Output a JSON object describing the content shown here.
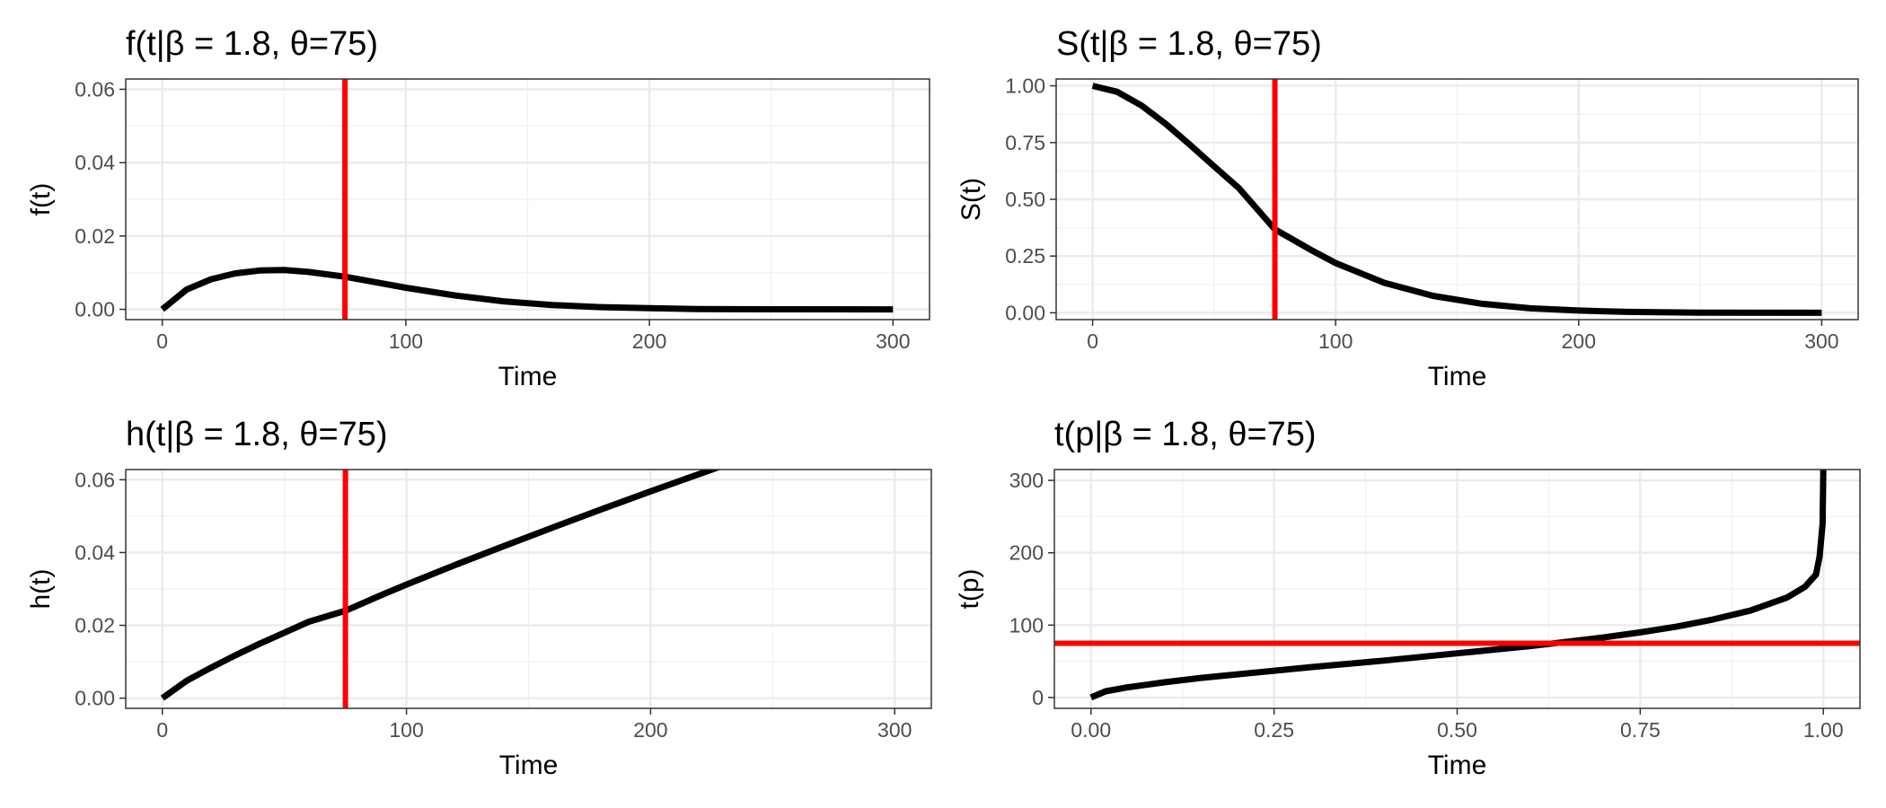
{
  "chart_data": [
    {
      "type": "line",
      "title": "f(t|β = 1.8, θ=75)",
      "xlabel": "Time",
      "ylabel": "f(t)",
      "xlim": [
        -15,
        315
      ],
      "ylim": [
        -0.0028,
        0.0628
      ],
      "x_ticks": [
        0,
        100,
        200,
        300
      ],
      "x_tick_labels": [
        "0",
        "100",
        "200",
        "300"
      ],
      "y_ticks": [
        0,
        0.02,
        0.04,
        0.06
      ],
      "y_tick_labels": [
        "0.00",
        "0.02",
        "0.04",
        "0.06"
      ],
      "grid": true,
      "series": [
        {
          "color": "#000000",
          "x": [
            0,
            10,
            20,
            30,
            40,
            50,
            60,
            75,
            90,
            100,
            120,
            140,
            160,
            180,
            200,
            220,
            250,
            300
          ],
          "y": [
            0,
            0.0054,
            0.0082,
            0.0098,
            0.0106,
            0.0107,
            0.0102,
            0.0089,
            0.0071,
            0.0059,
            0.0038,
            0.0022,
            0.0012,
            0.0006,
            0.0003,
            0.0001,
            2e-05,
            0
          ]
        }
      ],
      "reference_line": {
        "orientation": "vertical",
        "value": 75,
        "color": "#ff0000"
      }
    },
    {
      "type": "line",
      "title": "S(t|β = 1.8, θ=75)",
      "xlabel": "Time",
      "ylabel": "S(t)",
      "xlim": [
        -15,
        315
      ],
      "ylim": [
        -0.03,
        1.03
      ],
      "x_ticks": [
        0,
        100,
        200,
        300
      ],
      "x_tick_labels": [
        "0",
        "100",
        "200",
        "300"
      ],
      "y_ticks": [
        0,
        0.25,
        0.5,
        0.75,
        1
      ],
      "y_tick_labels": [
        "0.00",
        "0.25",
        "0.50",
        "0.75",
        "1.00"
      ],
      "grid": true,
      "series": [
        {
          "color": "#000000",
          "x": [
            0,
            10,
            20,
            30,
            40,
            50,
            60,
            75,
            90,
            100,
            120,
            140,
            160,
            180,
            200,
            220,
            250,
            300
          ],
          "y": [
            1,
            0.974,
            0.914,
            0.833,
            0.741,
            0.645,
            0.551,
            0.368,
            0.276,
            0.219,
            0.132,
            0.075,
            0.04,
            0.02,
            0.01,
            0.004,
            0.001,
            0
          ]
        }
      ],
      "reference_line": {
        "orientation": "vertical",
        "value": 75,
        "color": "#ff0000"
      }
    },
    {
      "type": "line",
      "title": "h(t|β = 1.8, θ=75)",
      "xlabel": "Time",
      "ylabel": "h(t)",
      "xlim": [
        -15,
        315
      ],
      "ylim": [
        -0.0028,
        0.0628
      ],
      "x_ticks": [
        0,
        100,
        200,
        300
      ],
      "x_tick_labels": [
        "0",
        "100",
        "200",
        "300"
      ],
      "y_ticks": [
        0,
        0.02,
        0.04,
        0.06
      ],
      "y_tick_labels": [
        "0.00",
        "0.02",
        "0.04",
        "0.06"
      ],
      "grid": true,
      "series": [
        {
          "color": "#000000",
          "x": [
            0,
            10,
            20,
            30,
            40,
            50,
            60,
            75,
            90,
            100,
            120,
            140,
            160,
            180,
            200,
            220,
            236
          ],
          "y": [
            0,
            0.0048,
            0.0084,
            0.0118,
            0.015,
            0.018,
            0.021,
            0.024,
            0.0284,
            0.0312,
            0.0366,
            0.0418,
            0.0469,
            0.0519,
            0.0568,
            0.0616,
            0.0654
          ]
        }
      ],
      "reference_line": {
        "orientation": "vertical",
        "value": 75,
        "color": "#ff0000"
      }
    },
    {
      "type": "line",
      "title": "t(p|β = 1.8, θ=75)",
      "xlabel": "Time",
      "ylabel": "t(p)",
      "xlim": [
        -0.05,
        1.05
      ],
      "ylim": [
        -15,
        315
      ],
      "x_ticks": [
        0,
        0.25,
        0.5,
        0.75,
        1
      ],
      "x_tick_labels": [
        "0.00",
        "0.25",
        "0.50",
        "0.75",
        "1.00"
      ],
      "y_ticks": [
        0,
        100,
        200,
        300
      ],
      "y_tick_labels": [
        "0",
        "100",
        "200",
        "300"
      ],
      "grid": true,
      "series": [
        {
          "color": "#000000",
          "x": [
            0,
            0.02,
            0.05,
            0.1,
            0.15,
            0.2,
            0.3,
            0.4,
            0.5,
            0.6,
            0.7,
            0.75,
            0.8,
            0.85,
            0.9,
            0.95,
            0.975,
            0.99,
            0.995,
            0.999,
            1
          ],
          "y": [
            0,
            8.6,
            14,
            21,
            27,
            32,
            42,
            51,
            61,
            71,
            83,
            90,
            98,
            108,
            120,
            138,
            153,
            170,
            195,
            240,
            315
          ]
        }
      ],
      "reference_line": {
        "orientation": "horizontal",
        "value": 75,
        "color": "#ff0000"
      }
    }
  ]
}
